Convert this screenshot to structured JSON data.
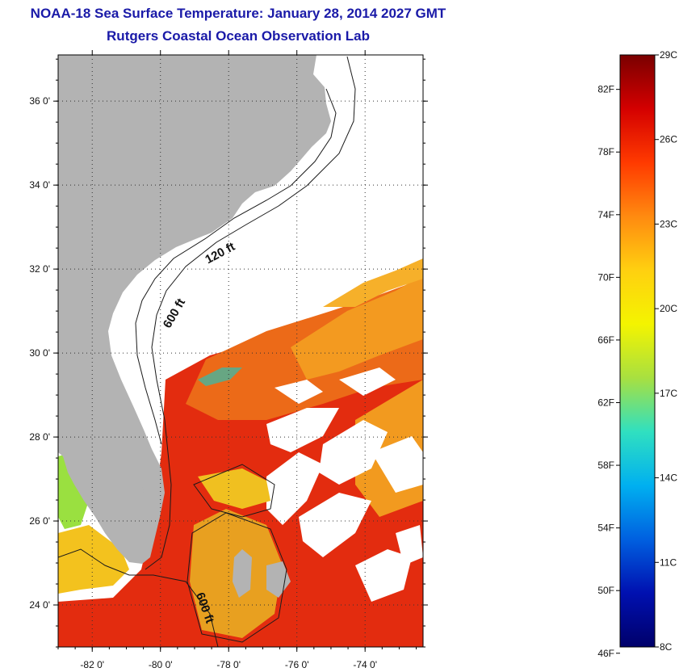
{
  "title": "NOAA-18 Sea Surface Temperature:  January 28, 2014 2027 GMT",
  "subtitle": "Rutgers Coastal Ocean Observation Lab",
  "map": {
    "lon_range": [
      -83,
      -72.3
    ],
    "lat_range": [
      23,
      37.1
    ],
    "lon_ticks": [
      {
        "value": -82,
        "label": "-82 0'"
      },
      {
        "value": -80,
        "label": "-80 0'"
      },
      {
        "value": -78,
        "label": "-78 0'"
      },
      {
        "value": -76,
        "label": "-76 0'"
      },
      {
        "value": -74,
        "label": "-74 0'"
      }
    ],
    "lat_ticks": [
      {
        "value": 36,
        "label": "36 0'"
      },
      {
        "value": 34,
        "label": "34 0'"
      },
      {
        "value": 32,
        "label": "32 0'"
      },
      {
        "value": 30,
        "label": "30 0'"
      },
      {
        "value": 28,
        "label": "28 0'"
      },
      {
        "value": 26,
        "label": "26 0'"
      },
      {
        "value": 24,
        "label": "24 0'"
      }
    ],
    "contour_labels": [
      {
        "text": "120 ft",
        "lon": -78.2,
        "lat": 32.3,
        "angle": -28
      },
      {
        "text": "600 ft",
        "lon": -79.5,
        "lat": 30.9,
        "angle": -60
      },
      {
        "text": "600 ft",
        "lon": -78.8,
        "lat": 23.9,
        "angle": 70
      }
    ],
    "colors": {
      "land": "#b3b3b3",
      "ocean_warm": "#e02a0e",
      "ocean_mid": "#ea6a18",
      "ocean_cool": "#f29a1e",
      "ocean_shelf": "#ffc82a",
      "cloud": "#ffffff",
      "grid": "#000000"
    }
  },
  "colorbar": {
    "c_min": 8,
    "c_max": 29,
    "celsius_labels": [
      {
        "value": 29,
        "label": "29C"
      },
      {
        "value": 26,
        "label": "26C"
      },
      {
        "value": 23,
        "label": "23C"
      },
      {
        "value": 20,
        "label": "20C"
      },
      {
        "value": 17,
        "label": "17C"
      },
      {
        "value": 14,
        "label": "14C"
      },
      {
        "value": 11,
        "label": "11C"
      },
      {
        "value": 8,
        "label": "8C"
      }
    ],
    "fahrenheit_labels": [
      {
        "value": 82,
        "label": "82F"
      },
      {
        "value": 78,
        "label": "78F"
      },
      {
        "value": 74,
        "label": "74F"
      },
      {
        "value": 70,
        "label": "70F"
      },
      {
        "value": 66,
        "label": "66F"
      },
      {
        "value": 62,
        "label": "62F"
      },
      {
        "value": 58,
        "label": "58F"
      },
      {
        "value": 54,
        "label": "54F"
      },
      {
        "value": 50,
        "label": "50F"
      },
      {
        "value": 46,
        "label": "46F"
      }
    ],
    "gradient_stops": [
      "#7a0000",
      "#d40000",
      "#ff3a00",
      "#ff8a10",
      "#ffd010",
      "#f4f400",
      "#a8e040",
      "#30e0c0",
      "#00b0f0",
      "#0060e0",
      "#0010b0",
      "#00006a"
    ]
  }
}
